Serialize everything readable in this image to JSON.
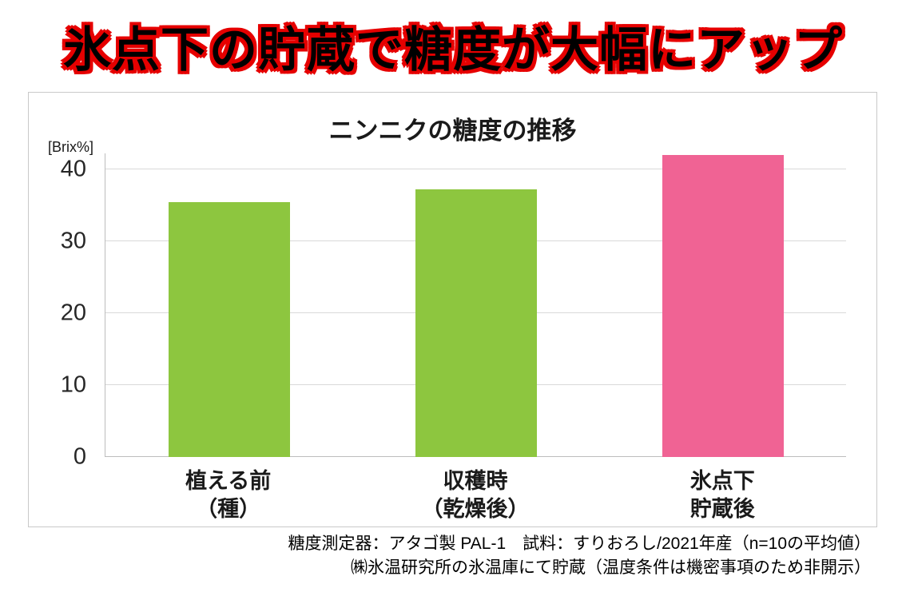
{
  "page": {
    "headline": "氷点下の貯蔵で糖度が大幅にアップ"
  },
  "chart_data": {
    "type": "bar",
    "title": "ニンニクの糖度の推移",
    "unit_label": "[Brix%]",
    "categories": [
      [
        "植える前",
        "（種）"
      ],
      [
        "収穫時",
        "（乾燥後）"
      ],
      [
        "氷点下",
        "貯蔵後"
      ]
    ],
    "values": [
      35.5,
      37.2,
      42
    ],
    "bar_colors": [
      "#8dc63f",
      "#8dc63f",
      "#f06394"
    ],
    "ylim": [
      0,
      42
    ],
    "yticks": [
      0,
      10,
      20,
      30,
      40
    ],
    "grid": true,
    "legend": "none",
    "footnotes": [
      "糖度測定器：アタゴ製 PAL-1　試料：すりおろし/2021年産（n=10の平均値）",
      "㈱氷温研究所の氷温庫にて貯蔵（温度条件は機密事項のため非開示）"
    ]
  }
}
